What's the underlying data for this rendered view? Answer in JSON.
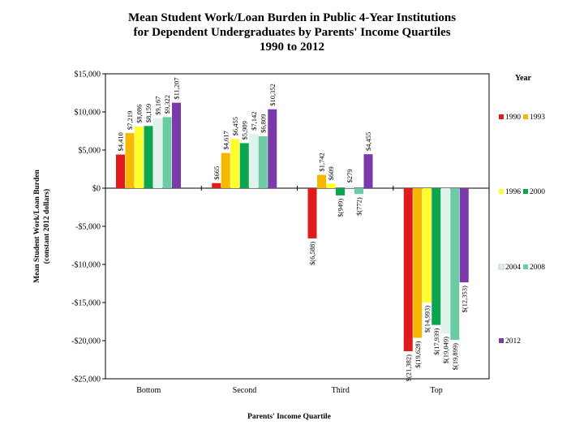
{
  "chart_data": {
    "type": "bar",
    "title": [
      "Mean Student Work/Loan Burden in Public 4-Year Institutions",
      "for Dependent Undergraduates by Parents' Income Quartiles",
      "1990 to 2012"
    ],
    "xlabel": "Parents' Income Quartile",
    "ylabel": [
      "Mean Student Work/Loan Burden",
      "(constant 2012 dollars)"
    ],
    "ylim": [
      -25000,
      15000
    ],
    "yticks": [
      15000,
      10000,
      5000,
      0,
      -5000,
      -10000,
      -15000,
      -20000,
      -25000
    ],
    "ytick_labels": [
      "$15,000",
      "$10,000",
      "$5,000",
      "$0",
      "-$5,000",
      "-$10,000",
      "-$15,000",
      "-$20,000",
      "-$25,000"
    ],
    "categories": [
      "Bottom",
      "Second",
      "Third",
      "Top"
    ],
    "legend_title": "Year",
    "legend_placement": "right",
    "series": [
      {
        "name": "1990",
        "color": "#e01b1b",
        "values": [
          4410,
          665,
          -6588,
          -21382
        ],
        "labels": [
          "$4,410",
          "$665",
          "$(6,588)",
          "$(21,382)"
        ]
      },
      {
        "name": "1993",
        "color": "#f6b800",
        "values": [
          7219,
          4617,
          1742,
          -19628
        ],
        "labels": [
          "$7,219",
          "$4,617",
          "$1,742",
          "$(19,628)"
        ]
      },
      {
        "name": "1996",
        "color": "#ffff2e",
        "values": [
          8086,
          6455,
          609,
          -14993
        ],
        "labels": [
          "$8,086",
          "$6,455",
          "$609",
          "$(14,993)"
        ]
      },
      {
        "name": "2000",
        "color": "#0aa54e",
        "values": [
          8159,
          5909,
          -949,
          -17939
        ],
        "labels": [
          "$8,159",
          "$5,909",
          "$(949)",
          "$(17,939)"
        ]
      },
      {
        "name": "2004",
        "color": "#dff2ec",
        "values": [
          9167,
          7142,
          279,
          -19049
        ],
        "labels": [
          "$9,167",
          "$7,142",
          "$279",
          "$(19,049)"
        ]
      },
      {
        "name": "2008",
        "color": "#6dcba3",
        "values": [
          9322,
          6809,
          -772,
          -19899
        ],
        "labels": [
          "$9,322",
          "$6,809",
          "$(772)",
          "$(19,899)"
        ]
      },
      {
        "name": "2012",
        "color": "#7a3aa8",
        "values": [
          11207,
          10352,
          4455,
          -12353
        ],
        "labels": [
          "$11,207",
          "$10,352",
          "$4,455",
          "$(12,353)"
        ]
      }
    ]
  }
}
